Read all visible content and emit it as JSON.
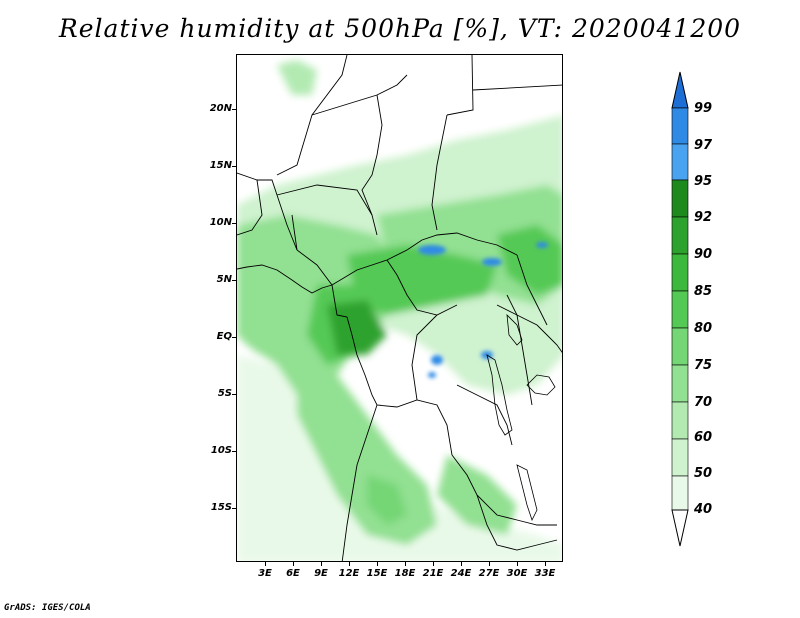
{
  "title": "Relative humidity at 500hPa [%], VT: 2020041200",
  "map": {
    "lat_labels": [
      "20N",
      "15N",
      "10N",
      "5N",
      "EQ",
      "5S",
      "10S",
      "15S"
    ],
    "lon_labels": [
      "3E",
      "6E",
      "9E",
      "12E",
      "15E",
      "18E",
      "21E",
      "24E",
      "27E",
      "30E",
      "33E"
    ]
  },
  "colorbar": {
    "labels": [
      "99",
      "97",
      "95",
      "92",
      "90",
      "85",
      "80",
      "75",
      "70",
      "60",
      "50",
      "40"
    ],
    "colors": [
      "#1d6fd6",
      "#2f8ae6",
      "#4aa3f0",
      "#1e8a1e",
      "#2ea22e",
      "#3cb83c",
      "#55c955",
      "#74d674",
      "#92e092",
      "#b2eab2",
      "#cff2cf",
      "#e9f9e9",
      "#ffffff"
    ]
  },
  "credit": "GrADS: IGES/COLA"
}
